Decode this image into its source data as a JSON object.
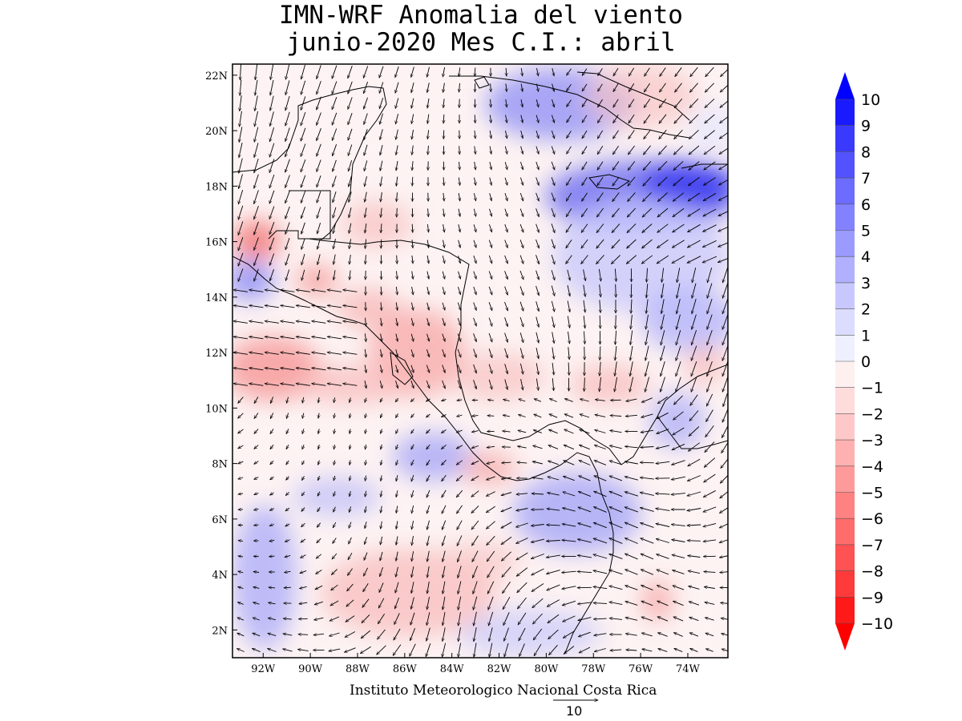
{
  "title": {
    "line1": "IMN-WRF Anomalia del viento",
    "line2": "junio-2020 Mes C.I.: abril"
  },
  "credit": "Instituto Meteorologico Nacional Costa Rica",
  "reference_vector": {
    "label": "10",
    "magnitude": 10
  },
  "map": {
    "lon_range": [
      -93.3,
      -72.3
    ],
    "lat_range": [
      1.0,
      22.4
    ],
    "lat_ticks": [
      "22N",
      "20N",
      "18N",
      "16N",
      "14N",
      "12N",
      "10N",
      "8N",
      "6N",
      "4N",
      "2N"
    ],
    "lon_ticks": [
      "92W",
      "90W",
      "88W",
      "86W",
      "84W",
      "82W",
      "80W",
      "78W",
      "76W",
      "74W"
    ],
    "field": "wind speed anomaly (shaded) with wind anomaly vectors"
  },
  "colorbar": {
    "labels": [
      "10",
      "9",
      "8",
      "7",
      "6",
      "5",
      "4",
      "3",
      "2",
      "1",
      "0",
      "−1",
      "−2",
      "−3",
      "−4",
      "−5",
      "−6",
      "−7",
      "−8",
      "−9",
      "−10"
    ],
    "colors": [
      "#1a1aff",
      "#3a3aff",
      "#5252ff",
      "#6c6cff",
      "#8282ff",
      "#9a9aff",
      "#b0b0ff",
      "#c8c8ff",
      "#dcdcff",
      "#eef0ff",
      "#fff0f0",
      "#ffdcdc",
      "#ffc8c8",
      "#ffb0b0",
      "#ff9a9a",
      "#ff8282",
      "#ff6c6c",
      "#ff5252",
      "#ff3a3a",
      "#ff1a1a"
    ],
    "max_color": "#0000ff",
    "min_color": "#ff0000"
  }
}
